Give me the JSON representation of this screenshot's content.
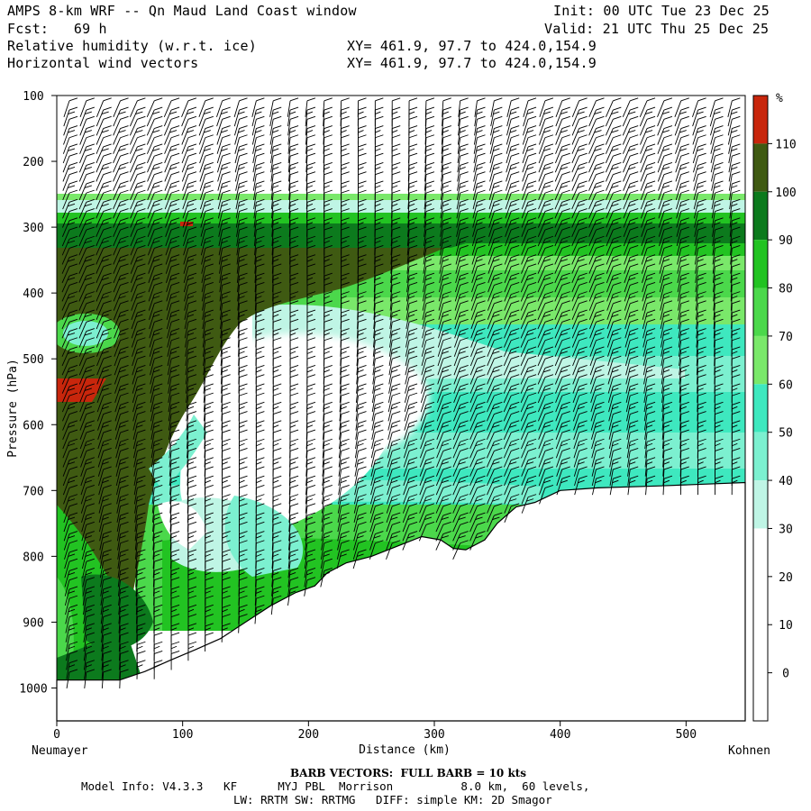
{
  "header": {
    "title": "AMPS 8-km WRF -- Qn Maud Land Coast window",
    "init": "Init: 00 UTC Tue 23 Dec 25",
    "fcst": "Fcst:   69 h",
    "valid": "Valid: 21 UTC Thu 25 Dec 25",
    "field1": "Relative humidity (w.r.t. ice)",
    "field2": "Horizontal wind vectors",
    "xy1": "XY= 461.9, 97.7 to 424.0,154.9",
    "xy2": "XY= 461.9, 97.7 to 424.0,154.9"
  },
  "footer": {
    "barb_note": "BARB VECTORS:  FULL BARB = 10 kts",
    "model_line1": "Model Info: V4.3.3   KF      MYJ PBL  Morrison          8.0 km,  60 levels,",
    "model_line2": "LW: RRTM SW: RRTMG   DIFF: simple KM: 2D Smagor"
  },
  "chart_data": {
    "type": "heatmap",
    "title": "Relative humidity (w.r.t. ice)",
    "xlabel": "Distance (km)",
    "ylabel": "Pressure (hPa)",
    "x_ticks": [
      0,
      100,
      200,
      300,
      400,
      500
    ],
    "y_ticks": [
      100,
      200,
      300,
      400,
      500,
      600,
      700,
      800,
      900,
      1000
    ],
    "xlim": [
      0,
      547
    ],
    "ylim": [
      100,
      1050
    ],
    "left_endpoint": "Neumayer",
    "right_endpoint": "Kohnen",
    "colorbar": {
      "unit": "%",
      "levels": [
        0,
        10,
        20,
        30,
        40,
        50,
        60,
        70,
        80,
        90,
        100,
        110
      ],
      "colors": [
        "#ffffff",
        "#ffffff",
        "#ffffff",
        "#bff5e5",
        "#7cf0d0",
        "#3ee8bf",
        "#7ae86a",
        "#4bd84b",
        "#22c322",
        "#0c7a1d",
        "#3f5a12",
        "#c8260c"
      ]
    },
    "terrain_pressure": [
      {
        "x": 0,
        "p": 988
      },
      {
        "x": 30,
        "p": 988
      },
      {
        "x": 50,
        "p": 988
      },
      {
        "x": 70,
        "p": 975
      },
      {
        "x": 90,
        "p": 958
      },
      {
        "x": 110,
        "p": 942
      },
      {
        "x": 130,
        "p": 925
      },
      {
        "x": 150,
        "p": 900
      },
      {
        "x": 170,
        "p": 875
      },
      {
        "x": 190,
        "p": 855
      },
      {
        "x": 205,
        "p": 845
      },
      {
        "x": 215,
        "p": 825
      },
      {
        "x": 230,
        "p": 810
      },
      {
        "x": 250,
        "p": 800
      },
      {
        "x": 270,
        "p": 785
      },
      {
        "x": 290,
        "p": 770
      },
      {
        "x": 305,
        "p": 775
      },
      {
        "x": 315,
        "p": 788
      },
      {
        "x": 325,
        "p": 790
      },
      {
        "x": 340,
        "p": 775
      },
      {
        "x": 350,
        "p": 750
      },
      {
        "x": 365,
        "p": 725
      },
      {
        "x": 380,
        "p": 718
      },
      {
        "x": 400,
        "p": 700
      },
      {
        "x": 430,
        "p": 696
      },
      {
        "x": 480,
        "p": 693
      },
      {
        "x": 547,
        "p": 688
      }
    ]
  }
}
